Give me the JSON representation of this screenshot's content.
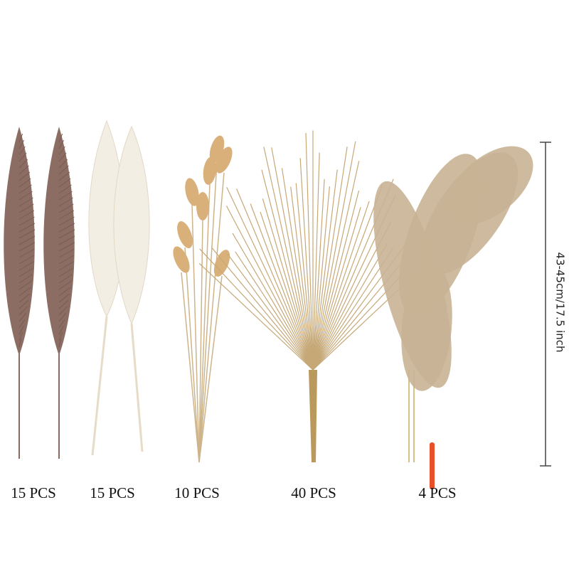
{
  "items": [
    {
      "label": "15 PCS"
    },
    {
      "label": "15 PCS"
    },
    {
      "label": "10 PCS"
    },
    {
      "label": "40 PCS"
    },
    {
      "label": "4 PCS"
    }
  ],
  "dimension": {
    "label": "43-45cm/17.5 inch"
  }
}
